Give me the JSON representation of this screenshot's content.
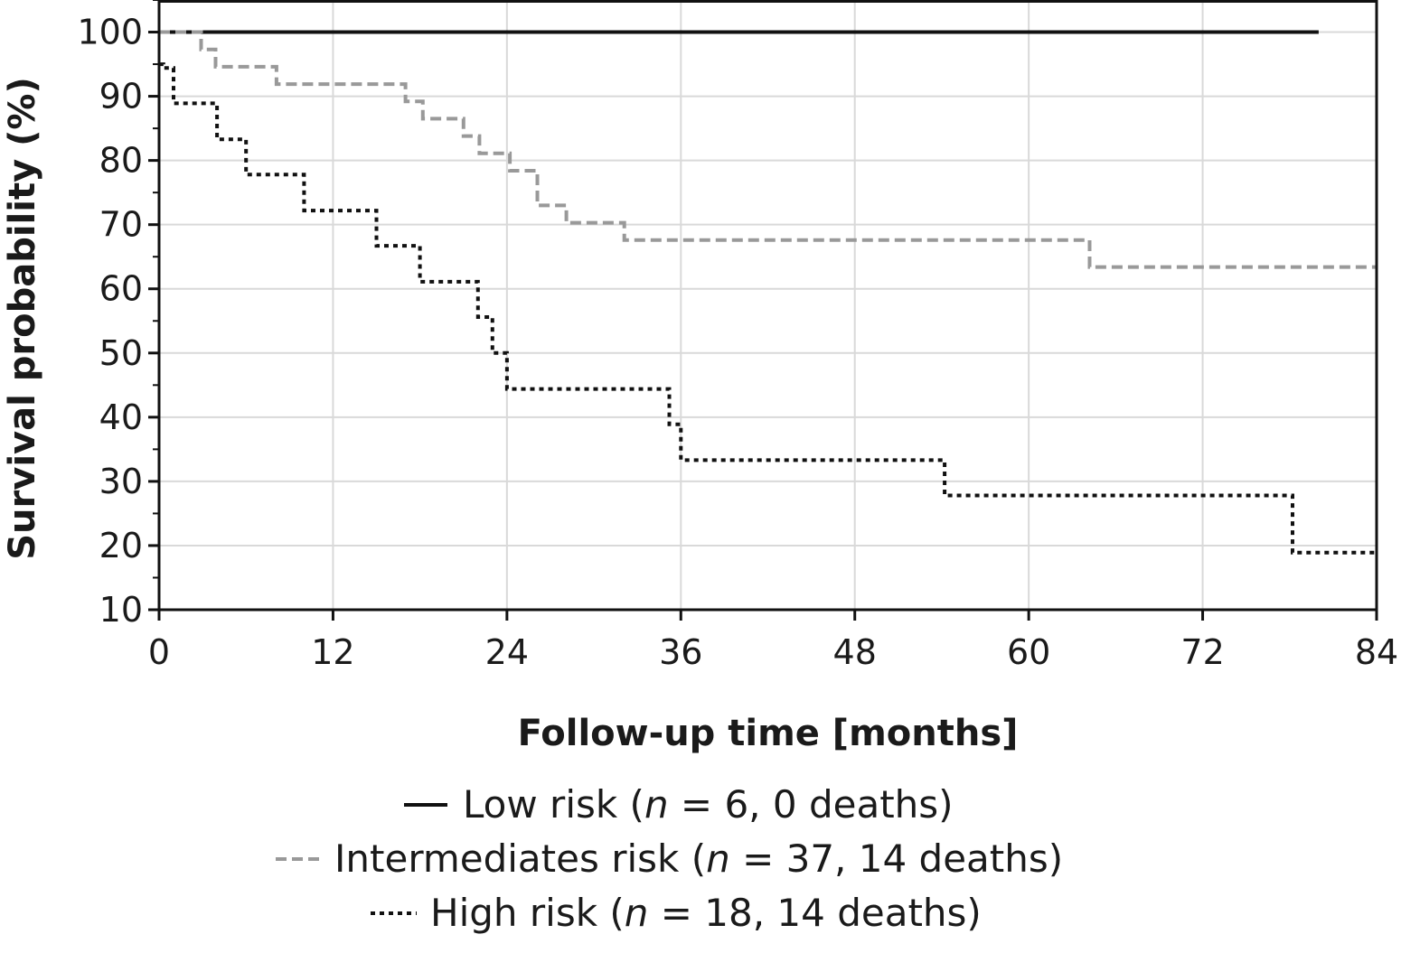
{
  "chart_data": {
    "type": "line",
    "step": true,
    "xlabel": "Follow-up time [months]",
    "ylabel": "Survival probability (%)",
    "xlim": [
      0,
      84
    ],
    "ylim": [
      10,
      105
    ],
    "xticks": [
      0,
      12,
      24,
      36,
      48,
      60,
      72,
      84
    ],
    "yticks": [
      10,
      20,
      30,
      40,
      50,
      60,
      70,
      80,
      90,
      100
    ],
    "grid": true,
    "legend_position": "bottom-center",
    "series": [
      {
        "name": "Low risk",
        "legend_parts": [
          "Low risk (",
          "n",
          " = 6, 0 deaths)"
        ],
        "color": "#111111",
        "style": "solid",
        "x": [
          0,
          80
        ],
        "y": [
          100,
          100
        ]
      },
      {
        "name": "Intermediates risk",
        "legend_parts": [
          "Intermediates risk (",
          "n",
          " = 37, 14 deaths)"
        ],
        "color": "#999999",
        "style": "dashed",
        "x": [
          0,
          2.9,
          3.9,
          8.1,
          17,
          18.2,
          21,
          22.1,
          24.2,
          26.1,
          28.1,
          32.1,
          64.2,
          84
        ],
        "y": [
          100,
          97.3,
          94.6,
          91.9,
          89.2,
          86.5,
          83.8,
          81.1,
          78.4,
          73,
          70.3,
          67.6,
          63.4,
          63.4
        ]
      },
      {
        "name": "High risk",
        "legend_parts": [
          "High risk (",
          "n",
          " = 18, 14 deaths)"
        ],
        "color": "#111111",
        "style": "dotted",
        "x": [
          0,
          0.3,
          1,
          4,
          6,
          10,
          15,
          18,
          22,
          23,
          24,
          35.2,
          36,
          54.2,
          78.2,
          84
        ],
        "y": [
          95,
          94.4,
          88.9,
          83.3,
          77.8,
          72.2,
          66.7,
          61.1,
          55.6,
          50,
          44.4,
          38.9,
          33.3,
          27.8,
          18.9,
          18.9
        ]
      }
    ]
  }
}
